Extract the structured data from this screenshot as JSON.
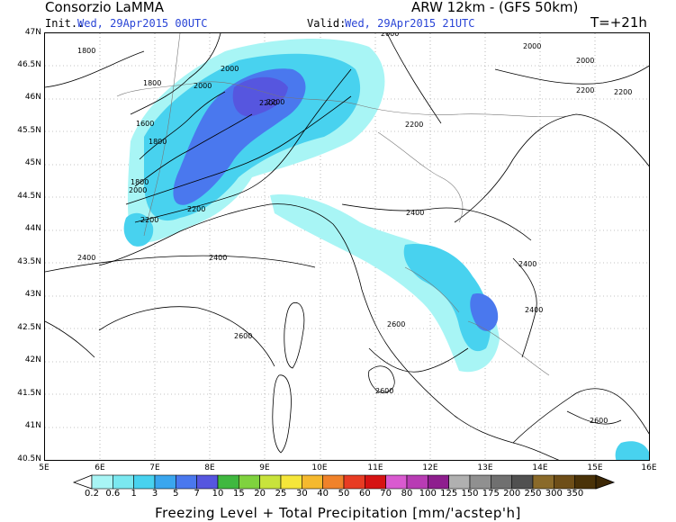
{
  "header": {
    "org": "Consorzio LaMMA",
    "model": "ARW 12km - (GFS 50km)",
    "init_label": "Init.:",
    "init_value": "Wed, 29Apr2015 00UTC",
    "valid_label": "Valid:",
    "valid_value": "Wed, 29Apr2015 21UTC",
    "step": "T=+21h"
  },
  "axes": {
    "lat_labels": [
      "47N",
      "46.5N",
      "46N",
      "45.5N",
      "45N",
      "44.5N",
      "44N",
      "43.5N",
      "43N",
      "42.5N",
      "42N",
      "41.5N",
      "41N",
      "40.5N"
    ],
    "lon_labels": [
      "5E",
      "6E",
      "7E",
      "8E",
      "9E",
      "10E",
      "11E",
      "12E",
      "13E",
      "14E",
      "15E",
      "16E"
    ]
  },
  "contours": {
    "freezing_level_labels": [
      "1800",
      "1800",
      "1600",
      "1800",
      "1800",
      "2000",
      "2000",
      "2000",
      "2000",
      "2200",
      "2200",
      "2200",
      "2200",
      "2200",
      "2000",
      "2000",
      "2200",
      "2200",
      "2400",
      "2400",
      "2400",
      "2400",
      "2400",
      "2600",
      "2600",
      "2600",
      "2600"
    ]
  },
  "colorbar": {
    "labels": [
      "0.2",
      "0.6",
      "1",
      "3",
      "5",
      "7",
      "10",
      "15",
      "20",
      "25",
      "30",
      "40",
      "50",
      "60",
      "70",
      "80",
      "100",
      "125",
      "150",
      "175",
      "200",
      "250",
      "300",
      "350"
    ],
    "colors": [
      "#a8f5f5",
      "#7ae8f0",
      "#48d2ef",
      "#3aa6ee",
      "#4a78ee",
      "#5656df",
      "#3fb83f",
      "#7fd23e",
      "#c8e33b",
      "#f5e63a",
      "#f5b92e",
      "#f0822a",
      "#e83c23",
      "#d61313",
      "#d95ad0",
      "#b83cb4",
      "#8e1e8e",
      "#b0b0b0",
      "#909090",
      "#707070",
      "#505050",
      "#8a6a2a",
      "#6e4e18",
      "#4a3208"
    ]
  },
  "footer": {
    "title": "Freezing Level + Total Precipitation [mm/'acstep'h]"
  }
}
